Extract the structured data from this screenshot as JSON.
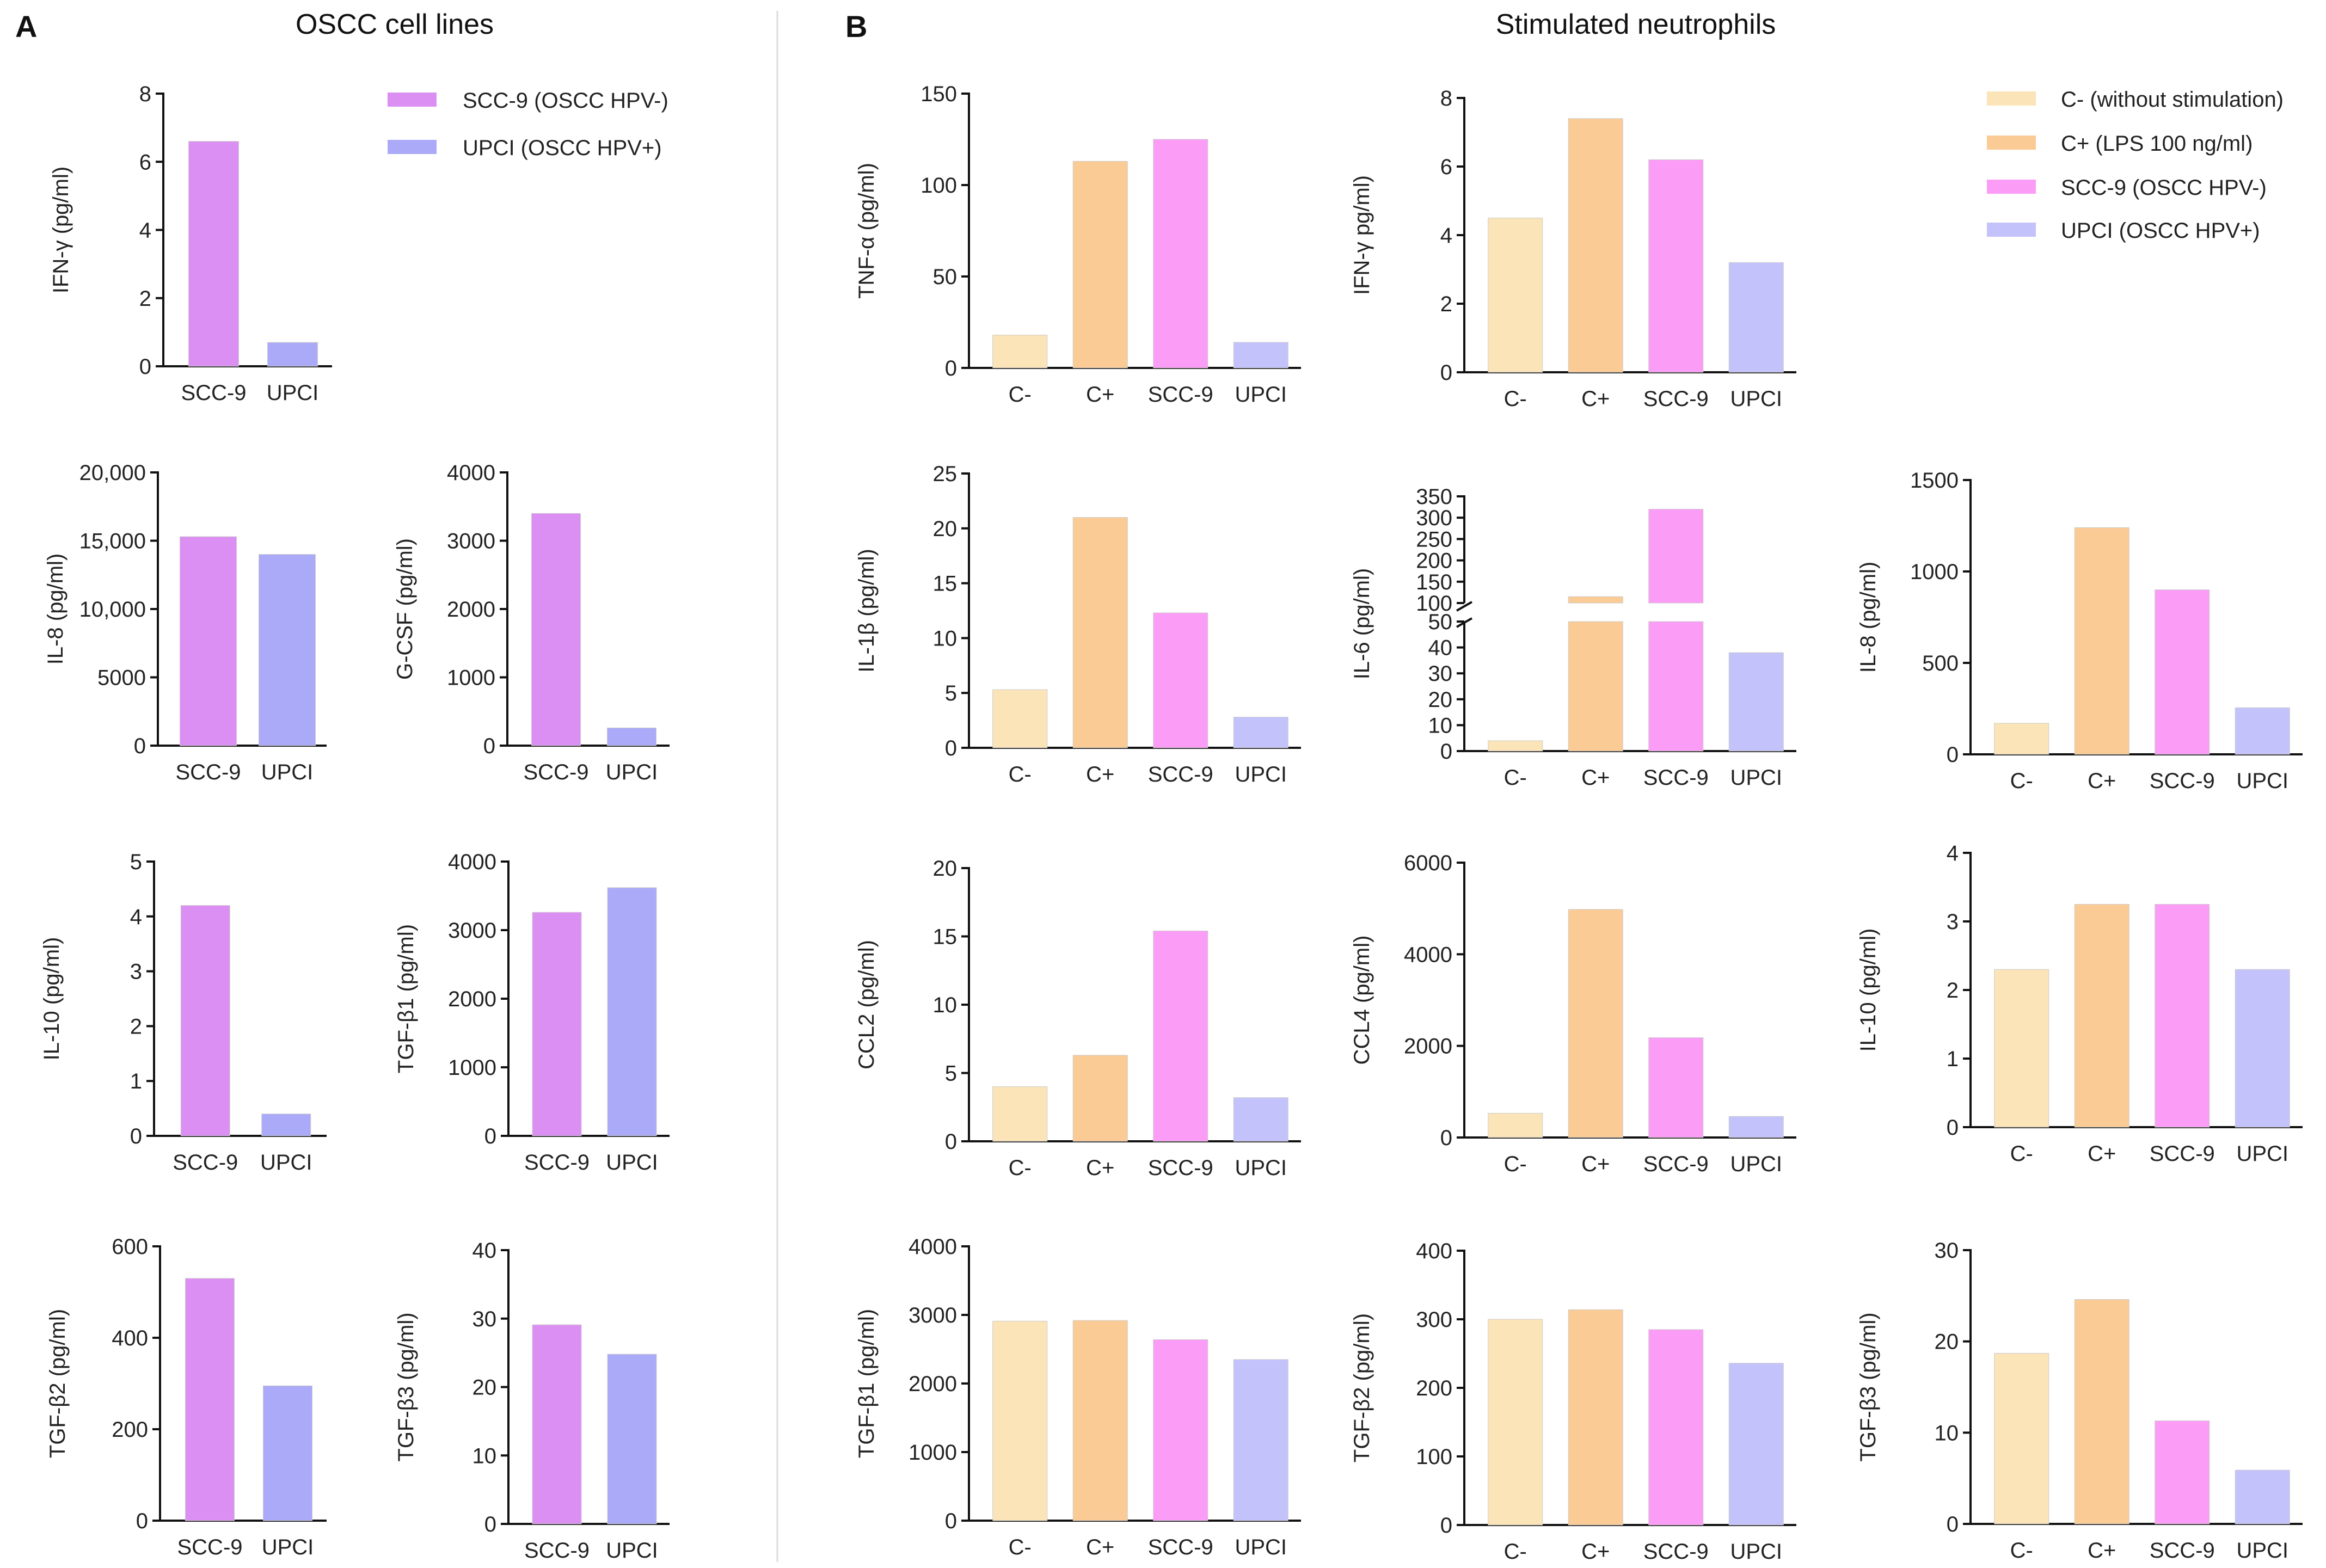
{
  "panels": {
    "A": {
      "label": "A",
      "title": "OSCC cell lines"
    },
    "B": {
      "label": "B",
      "title": "Stimulated neutrophils"
    }
  },
  "colors": {
    "SCC-9": "#dc8ff2",
    "UPCI": "#aaaaf8",
    "C-": "#fbe4b8",
    "C+": "#fbcb96",
    "SCC-9 (neutrophils)": "#fb9cf6",
    "UPCI (neutrophils)": "#c4c2fb"
  },
  "legends": {
    "A": [
      {
        "key": "SCC-9",
        "label": "SCC-9 (OSCC HPV-)"
      },
      {
        "key": "UPCI",
        "label": "UPCI (OSCC HPV+)"
      }
    ],
    "B": [
      {
        "key": "C-",
        "label": "C- (without stimulation)"
      },
      {
        "key": "C+",
        "label": "C+ (LPS 100 ng/ml)"
      },
      {
        "key": "SCC-9 (neutrophils)",
        "label": "SCC-9 (OSCC HPV-)"
      },
      {
        "key": "UPCI (neutrophils)",
        "label": "UPCI (OSCC HPV+)"
      }
    ]
  },
  "chart_data": [
    {
      "id": "A-ifng",
      "panel": "A",
      "type": "bar",
      "ylabel": "IFN-γ (pg/ml)",
      "categories": [
        "SCC-9",
        "UPCI"
      ],
      "values": [
        6.6,
        0.7
      ],
      "ylim": [
        0,
        8
      ],
      "yticks": [
        "0",
        "2",
        "4",
        "6",
        "8"
      ]
    },
    {
      "id": "A-il8",
      "panel": "A",
      "type": "bar",
      "ylabel": "IL-8 (pg/ml)",
      "categories": [
        "SCC-9",
        "UPCI"
      ],
      "values": [
        15300,
        14000
      ],
      "ylim": [
        0,
        20000
      ],
      "yticks": [
        "0",
        "5000",
        "10,000",
        "15,000",
        "20,000"
      ]
    },
    {
      "id": "A-gcsf",
      "panel": "A",
      "type": "bar",
      "ylabel": "G-CSF (pg/ml)",
      "categories": [
        "SCC-9",
        "UPCI"
      ],
      "values": [
        3400,
        260
      ],
      "ylim": [
        0,
        4000
      ],
      "yticks": [
        "0",
        "1000",
        "2000",
        "3000",
        "4000"
      ]
    },
    {
      "id": "A-il10",
      "panel": "A",
      "type": "bar",
      "ylabel": "IL-10 (pg/ml)",
      "categories": [
        "SCC-9",
        "UPCI"
      ],
      "values": [
        4.2,
        0.4
      ],
      "ylim": [
        0,
        5
      ],
      "yticks": [
        "0",
        "1",
        "2",
        "3",
        "4",
        "5"
      ]
    },
    {
      "id": "A-tgfb1",
      "panel": "A",
      "type": "bar",
      "ylabel": "TGF-β1 (pg/ml)",
      "categories": [
        "SCC-9",
        "UPCI"
      ],
      "values": [
        3260,
        3620
      ],
      "ylim": [
        0,
        4000
      ],
      "yticks": [
        "0",
        "1000",
        "2000",
        "3000",
        "4000"
      ]
    },
    {
      "id": "A-tgfb2",
      "panel": "A",
      "type": "bar",
      "ylabel": "TGF-β2 (pg/ml)",
      "categories": [
        "SCC-9",
        "UPCI"
      ],
      "values": [
        530,
        295
      ],
      "ylim": [
        0,
        600
      ],
      "yticks": [
        "0",
        "200",
        "400",
        "600"
      ]
    },
    {
      "id": "A-tgfb3",
      "panel": "A",
      "type": "bar",
      "ylabel": "TGF-β3 (pg/ml)",
      "categories": [
        "SCC-9",
        "UPCI"
      ],
      "values": [
        29.1,
        24.8
      ],
      "ylim": [
        0,
        40
      ],
      "yticks": [
        "0",
        "10",
        "20",
        "30",
        "40"
      ]
    },
    {
      "id": "B-tnfa",
      "panel": "B",
      "type": "bar",
      "ylabel": "TNF-α (pg/ml)",
      "categories": [
        "C-",
        "C+",
        "SCC-9",
        "UPCI"
      ],
      "values": [
        18,
        113,
        125,
        14
      ],
      "ylim": [
        0,
        150
      ],
      "yticks": [
        "0",
        "50",
        "100",
        "150"
      ]
    },
    {
      "id": "B-ifng",
      "panel": "B",
      "type": "bar",
      "ylabel": "IFN-γ pg/ml)",
      "categories": [
        "C-",
        "C+",
        "SCC-9",
        "UPCI"
      ],
      "values": [
        4.5,
        7.4,
        6.2,
        3.2
      ],
      "ylim": [
        0,
        8
      ],
      "yticks": [
        "0",
        "2",
        "4",
        "6",
        "8"
      ]
    },
    {
      "id": "B-il1b",
      "panel": "B",
      "type": "bar",
      "ylabel": "IL-1β (pg/ml)",
      "categories": [
        "C-",
        "C+",
        "SCC-9",
        "UPCI"
      ],
      "values": [
        5.3,
        21,
        12.3,
        2.8
      ],
      "ylim": [
        0,
        25
      ],
      "yticks": [
        "0",
        "5",
        "10",
        "15",
        "20",
        "25"
      ]
    },
    {
      "id": "B-il6",
      "panel": "B",
      "type": "bar",
      "ylabel": "IL-6 (pg/ml)",
      "categories": [
        "C-",
        "C+",
        "SCC-9",
        "UPCI"
      ],
      "values": [
        4,
        115,
        320,
        38
      ],
      "ylim": [
        0,
        350
      ],
      "axis_break": [
        50,
        100
      ],
      "yticks_lower": [
        "0",
        "10",
        "20",
        "30",
        "40",
        "50"
      ],
      "yticks_upper": [
        "100",
        "150",
        "200",
        "250",
        "300",
        "350"
      ]
    },
    {
      "id": "B-il8",
      "panel": "B",
      "type": "bar",
      "ylabel": "IL-8 (pg/ml)",
      "categories": [
        "C-",
        "C+",
        "SCC-9",
        "UPCI"
      ],
      "values": [
        170,
        1240,
        900,
        255
      ],
      "ylim": [
        0,
        1500
      ],
      "yticks": [
        "0",
        "500",
        "1000",
        "1500"
      ]
    },
    {
      "id": "B-ccl2",
      "panel": "B",
      "type": "bar",
      "ylabel": "CCL2 (pg/ml)",
      "categories": [
        "C-",
        "C+",
        "SCC-9",
        "UPCI"
      ],
      "values": [
        4,
        6.3,
        15.4,
        3.2
      ],
      "ylim": [
        0,
        20
      ],
      "yticks": [
        "0",
        "5",
        "10",
        "15",
        "20"
      ]
    },
    {
      "id": "B-ccl4",
      "panel": "B",
      "type": "bar",
      "ylabel": "CCL4 (pg/ml)",
      "categories": [
        "C-",
        "C+",
        "SCC-9",
        "UPCI"
      ],
      "values": [
        530,
        4980,
        2180,
        460
      ],
      "ylim": [
        0,
        6000
      ],
      "yticks": [
        "0",
        "2000",
        "4000",
        "6000"
      ]
    },
    {
      "id": "B-il10",
      "panel": "B",
      "type": "bar",
      "ylabel": "IL-10 (pg/ml)",
      "categories": [
        "C-",
        "C+",
        "SCC-9",
        "UPCI"
      ],
      "values": [
        2.3,
        3.25,
        3.25,
        2.3
      ],
      "ylim": [
        0,
        4
      ],
      "yticks": [
        "0",
        "1",
        "2",
        "3",
        "4"
      ]
    },
    {
      "id": "B-tgfb1",
      "panel": "B",
      "type": "bar",
      "ylabel": "TGF-β1 (pg/ml)",
      "categories": [
        "C-",
        "C+",
        "SCC-9",
        "UPCI"
      ],
      "values": [
        2910,
        2920,
        2640,
        2350
      ],
      "ylim": [
        0,
        4000
      ],
      "yticks": [
        "0",
        "1000",
        "2000",
        "3000",
        "4000"
      ]
    },
    {
      "id": "B-tgfb2",
      "panel": "B",
      "type": "bar",
      "ylabel": "TGF-β2 (pg/ml)",
      "categories": [
        "C-",
        "C+",
        "SCC-9",
        "UPCI"
      ],
      "values": [
        300,
        314,
        285,
        236
      ],
      "ylim": [
        0,
        400
      ],
      "yticks": [
        "0",
        "100",
        "200",
        "300",
        "400"
      ]
    },
    {
      "id": "B-tgfb3",
      "panel": "B",
      "type": "bar",
      "ylabel": "TGF-β3  (pg/ml)",
      "categories": [
        "C-",
        "C+",
        "SCC-9",
        "UPCI"
      ],
      "values": [
        18.7,
        24.6,
        11.3,
        5.9
      ],
      "ylim": [
        0,
        30
      ],
      "yticks": [
        "0",
        "10",
        "20",
        "30"
      ]
    }
  ]
}
